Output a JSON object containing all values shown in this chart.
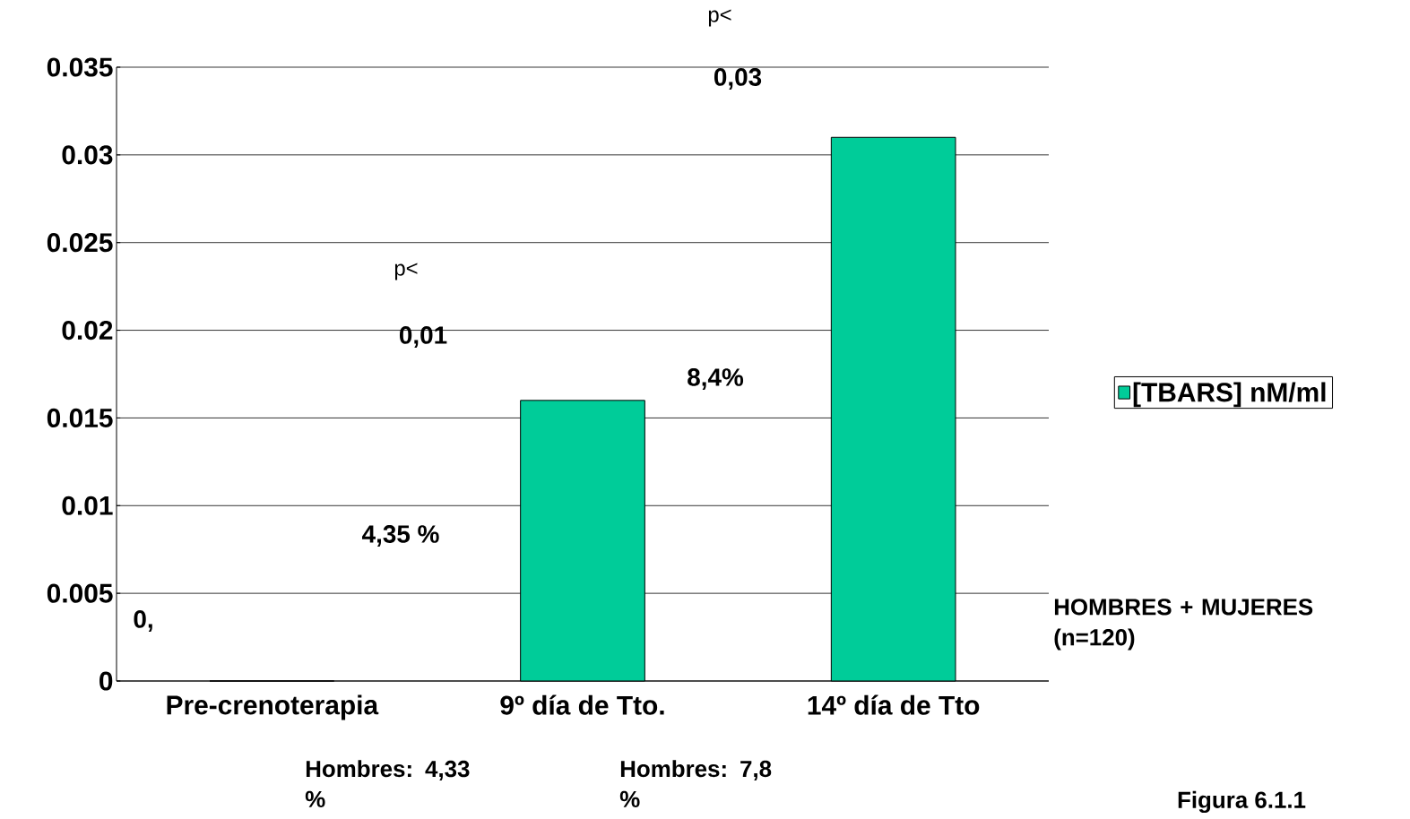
{
  "chart_data": {
    "type": "bar",
    "categories": [
      "Pre-crenoterapia",
      "9º día de Tto.",
      "14º día de Tto"
    ],
    "series": [
      {
        "name": "[TBARS] nM/ml",
        "color": "#00cc99",
        "values": [
          0,
          0.016,
          0.031
        ]
      }
    ],
    "ylim": [
      0,
      0.035
    ],
    "yticks": [
      0,
      0.005,
      0.01,
      0.015,
      0.02,
      0.025,
      0.03,
      0.035
    ],
    "grid": "y",
    "legend": "right",
    "annotations": [
      "p<",
      "0,03",
      "p<",
      "0,01",
      "4,35 %",
      "8,4%",
      "0,",
      "HOMBRES + MUJERES (n=120)",
      "Hombres: 4,33 %",
      "Hombres: 7,8 %",
      "Figura 6.1.1"
    ]
  }
}
